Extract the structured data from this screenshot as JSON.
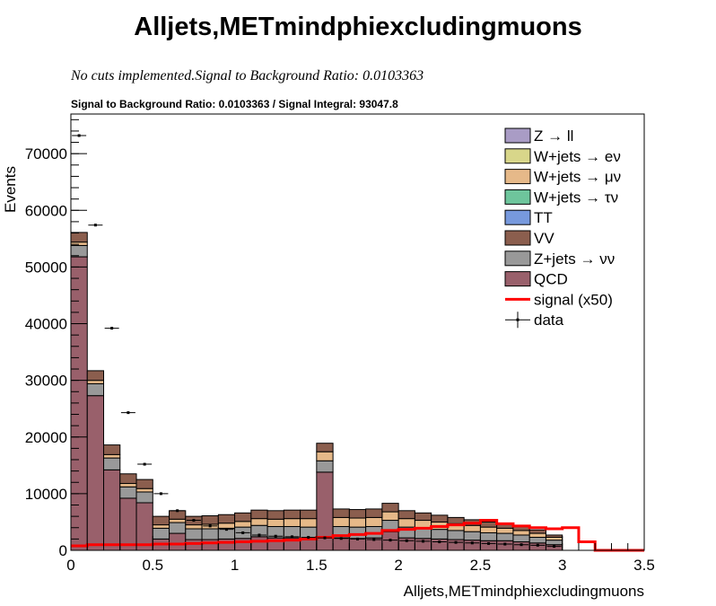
{
  "chart_data": {
    "type": "bar",
    "title": "Alljets,METmindphiexcludingmuons",
    "subtitle": "No cuts implemented.Signal to Background Ratio: 0.0103363",
    "subtitle2": "Signal to Background Ratio: 0.0103363 / Signal Integral: 93047.8",
    "xlabel": "Alljets,METmindphiexcludingmuons",
    "ylabel": "Events",
    "xlim": [
      0,
      3.5
    ],
    "ylim": [
      0,
      77000
    ],
    "xticks": [
      0,
      0.5,
      1,
      1.5,
      2,
      2.5,
      3,
      3.5
    ],
    "xtick_labels": [
      "0",
      "0.5",
      "1",
      "1.5",
      "2",
      "2.5",
      "3",
      "3.5"
    ],
    "yticks": [
      0,
      10000,
      20000,
      30000,
      40000,
      50000,
      60000,
      70000
    ],
    "ytick_labels": [
      "0",
      "10000",
      "20000",
      "30000",
      "40000",
      "50000",
      "60000",
      "70000"
    ],
    "bin_width": 0.1,
    "x": [
      0.05,
      0.15,
      0.25,
      0.35,
      0.45,
      0.55,
      0.65,
      0.75,
      0.85,
      0.95,
      1.05,
      1.15,
      1.25,
      1.35,
      1.45,
      1.55,
      1.65,
      1.75,
      1.85,
      1.95,
      2.05,
      2.15,
      2.25,
      2.35,
      2.45,
      2.55,
      2.65,
      2.75,
      2.85,
      2.95,
      3.05,
      3.15,
      3.25,
      3.35,
      3.45
    ],
    "legend": [
      {
        "label": "Z → ll",
        "color": "#a99cc5",
        "kind": "box"
      },
      {
        "label": "W+jets → eν",
        "color": "#d8d68a",
        "kind": "box"
      },
      {
        "label": "W+jets → μν",
        "color": "#e6b989",
        "kind": "box"
      },
      {
        "label": "W+jets → τν",
        "color": "#6ec59c",
        "kind": "box"
      },
      {
        "label": "TT",
        "color": "#7799dd",
        "kind": "box"
      },
      {
        "label": "VV",
        "color": "#8b5e4e",
        "kind": "box"
      },
      {
        "label": "Z+jets → νν",
        "color": "#999999",
        "kind": "box"
      },
      {
        "label": "QCD",
        "color": "#99606b",
        "kind": "box"
      },
      {
        "label": "signal (x50)",
        "color": "#ff0000",
        "kind": "line"
      },
      {
        "label": "data",
        "color": "#000000",
        "kind": "marker"
      }
    ],
    "legend_position": "top-right",
    "series": [
      {
        "name": "QCD",
        "color": "#99606b",
        "values": [
          51800,
          27300,
          14200,
          9200,
          8400,
          2000,
          3000,
          1900,
          1900,
          2000,
          2100,
          2400,
          2200,
          2200,
          2100,
          13800,
          2200,
          2100,
          2200,
          3300,
          2200,
          2100,
          2000,
          1900,
          1800,
          1700,
          1700,
          1500,
          1300,
          1000,
          0,
          0,
          0,
          0,
          0
        ]
      },
      {
        "name": "Z+jets → νν",
        "color": "#999999",
        "values": [
          2000,
          2100,
          2100,
          2000,
          1900,
          1900,
          1900,
          1900,
          1900,
          1900,
          2000,
          2000,
          2000,
          2000,
          2000,
          2000,
          2000,
          2000,
          2000,
          2000,
          1900,
          1800,
          1700,
          1600,
          1500,
          1400,
          1300,
          1200,
          1000,
          800,
          0,
          0,
          0,
          0,
          0
        ]
      },
      {
        "name": "W+jets → μν",
        "color": "#e6b989",
        "values": [
          600,
          600,
          600,
          600,
          600,
          600,
          600,
          700,
          800,
          900,
          1000,
          1200,
          1300,
          1400,
          1500,
          1600,
          1600,
          1600,
          1600,
          1500,
          1500,
          1400,
          1300,
          1200,
          1100,
          1000,
          900,
          800,
          700,
          500,
          0,
          0,
          0,
          0,
          0
        ]
      },
      {
        "name": "VV",
        "color": "#8b5e4e",
        "values": [
          1700,
          1700,
          1700,
          1700,
          1600,
          1500,
          1500,
          1500,
          1500,
          1500,
          1500,
          1500,
          1500,
          1500,
          1500,
          1500,
          1500,
          1500,
          1500,
          1500,
          1400,
          1300,
          1200,
          1100,
          1000,
          900,
          800,
          700,
          600,
          400,
          0,
          0,
          0,
          0,
          0
        ]
      }
    ],
    "signal": {
      "name": "signal (x50)",
      "color": "#ff0000",
      "values": [
        800,
        1000,
        1000,
        1000,
        1000,
        1100,
        1100,
        1200,
        1300,
        1400,
        1500,
        1600,
        1700,
        1800,
        2000,
        2300,
        2600,
        2800,
        3000,
        3500,
        3700,
        3900,
        4200,
        4500,
        4800,
        5300,
        4700,
        4300,
        4000,
        3800,
        4000,
        1500,
        0,
        0,
        0
      ]
    },
    "data_points": {
      "name": "data",
      "values": [
        73200,
        57400,
        39200,
        24300,
        15200,
        10000,
        7000,
        5300,
        4300,
        3700,
        3100,
        2700,
        2500,
        2400,
        2300,
        2200,
        2100,
        2000,
        1900,
        1800,
        1700,
        1600,
        1500,
        1400,
        1300,
        1200,
        1100,
        1000,
        900,
        700,
        0,
        0,
        0,
        0,
        0
      ]
    }
  }
}
